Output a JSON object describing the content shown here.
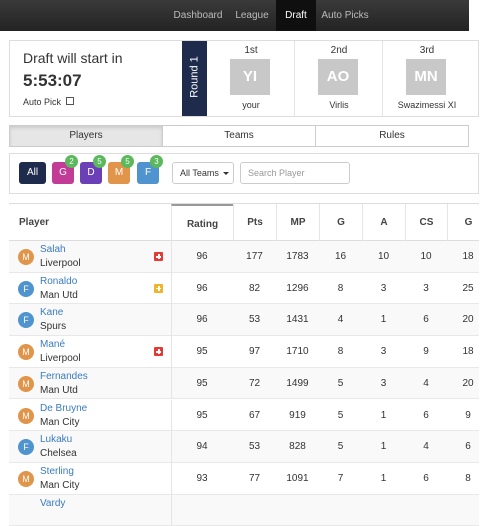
{
  "nav": {
    "items": [
      "Dashboard",
      "League",
      "Draft",
      "Auto Picks"
    ],
    "active": 2
  },
  "draft": {
    "title": "Draft will start in",
    "countdown": "5:53:07",
    "auto_pick": "Auto Pick",
    "round": "Round 1",
    "picks": [
      {
        "order": "1st",
        "initials": "YI",
        "name": "your"
      },
      {
        "order": "2nd",
        "initials": "AO",
        "name": "Virlis"
      },
      {
        "order": "3rd",
        "initials": "MN",
        "name": "Swazimessi XI"
      }
    ]
  },
  "tabs": {
    "items": [
      "Players",
      "Teams",
      "Rules"
    ],
    "active": 0
  },
  "filters": {
    "buttons": [
      {
        "label": "All",
        "color": "#1f2b4d"
      },
      {
        "label": "G",
        "color": "#c23c97",
        "count": 2
      },
      {
        "label": "D",
        "color": "#6b3fb6",
        "count": 5
      },
      {
        "label": "M",
        "color": "#e0954a",
        "count": 5
      },
      {
        "label": "F",
        "color": "#4f93cf",
        "count": 3
      }
    ],
    "badge_color": "#5cb85c",
    "team_select": "All Teams",
    "search_placeholder": "Search Player"
  },
  "table": {
    "columns": [
      "Player",
      "Rating",
      "Pts",
      "MP",
      "G",
      "A",
      "CS",
      "G"
    ],
    "rows": [
      {
        "position": "M",
        "name": "Salah",
        "team": "Liverpool",
        "flag": "#e53935",
        "stats": [
          96,
          177,
          1783,
          16,
          10,
          10,
          18
        ]
      },
      {
        "position": "F",
        "name": "Ronaldo",
        "team": "Man Utd",
        "flag": "#f0b429",
        "stats": [
          96,
          82,
          1296,
          8,
          3,
          3,
          25
        ]
      },
      {
        "position": "F",
        "name": "Kane",
        "team": "Spurs",
        "stats": [
          96,
          53,
          1431,
          4,
          1,
          6,
          20
        ]
      },
      {
        "position": "M",
        "name": "Mané",
        "team": "Liverpool",
        "flag": "#e53935",
        "stats": [
          95,
          97,
          1710,
          8,
          3,
          9,
          18
        ]
      },
      {
        "position": "M",
        "name": "Fernandes",
        "team": "Man Utd",
        "stats": [
          95,
          72,
          1499,
          5,
          3,
          4,
          20
        ]
      },
      {
        "position": "M",
        "name": "De Bruyne",
        "team": "Man City",
        "stats": [
          95,
          67,
          919,
          5,
          1,
          6,
          9
        ]
      },
      {
        "position": "F",
        "name": "Lukaku",
        "team": "Chelsea",
        "stats": [
          94,
          53,
          828,
          5,
          1,
          4,
          6
        ]
      },
      {
        "position": "M",
        "name": "Sterling",
        "team": "Man City",
        "stats": [
          93,
          77,
          1091,
          7,
          1,
          6,
          8
        ]
      },
      {
        "name": "Vardy"
      }
    ]
  }
}
